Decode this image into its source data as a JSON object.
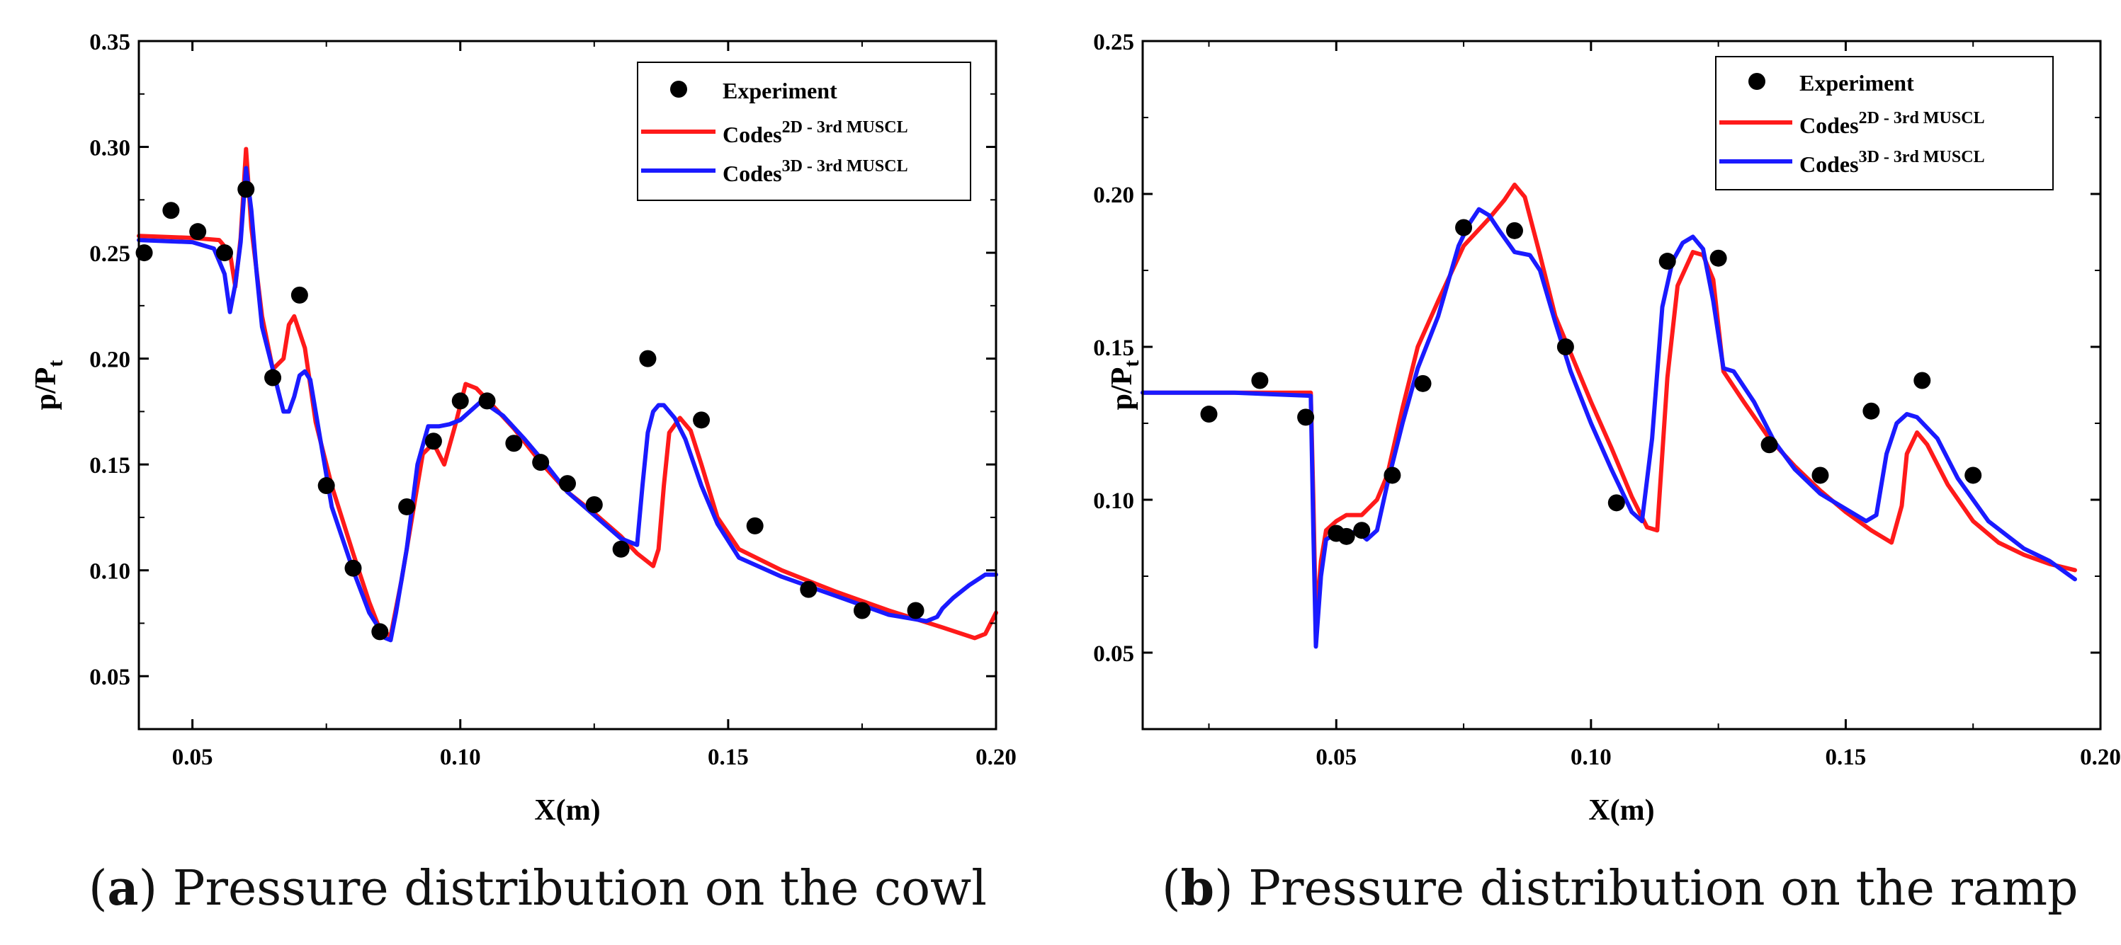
{
  "figure": {
    "captions": [
      {
        "tag": "a",
        "text": "Pressure distribution on the cowl"
      },
      {
        "tag": "b",
        "text": "Pressure distribution on the ramp"
      }
    ]
  },
  "colors": {
    "experiment": "#000000",
    "code2d": "#ff1a1a",
    "code3d": "#1a1aff",
    "axis": "#000000"
  },
  "chart_data": [
    {
      "type": "line",
      "title": "Pressure distribution on the cowl",
      "xlabel": "X(m)",
      "ylabel": "p/P",
      "ylabel_sub": "t",
      "xlim": [
        0.04,
        0.2
      ],
      "ylim": [
        0.025,
        0.35
      ],
      "xticks": [
        "0.05",
        "0.10",
        "0.15",
        "0.20"
      ],
      "xtick_values": [
        0.05,
        0.1,
        0.15,
        0.2
      ],
      "yticks": [
        "0.05",
        "0.10",
        "0.15",
        "0.20",
        "0.25",
        "0.30",
        "0.35"
      ],
      "ytick_values": [
        0.05,
        0.1,
        0.15,
        0.2,
        0.25,
        0.3,
        0.35
      ],
      "legend": {
        "position": "top-right",
        "experiment": "Experiment",
        "code_prefix": "Codes",
        "sup2d": "2D",
        "sup3d": "3D",
        "code_suffix": " - 3rd MUSCL"
      },
      "experiment": {
        "x": [
          0.041,
          0.046,
          0.051,
          0.056,
          0.06,
          0.065,
          0.07,
          0.075,
          0.08,
          0.085,
          0.09,
          0.095,
          0.1,
          0.105,
          0.11,
          0.115,
          0.12,
          0.125,
          0.13,
          0.135,
          0.145,
          0.155,
          0.165,
          0.175,
          0.185
        ],
        "y": [
          0.25,
          0.27,
          0.26,
          0.25,
          0.28,
          0.191,
          0.23,
          0.14,
          0.101,
          0.071,
          0.13,
          0.161,
          0.18,
          0.18,
          0.16,
          0.151,
          0.141,
          0.131,
          0.11,
          0.2,
          0.171,
          0.121,
          0.091,
          0.081,
          0.081
        ]
      },
      "series": [
        {
          "name": "Codes2D - 3rd MUSCL",
          "x": [
            0.04,
            0.05,
            0.055,
            0.057,
            0.058,
            0.059,
            0.06,
            0.061,
            0.063,
            0.065,
            0.067,
            0.068,
            0.069,
            0.071,
            0.073,
            0.076,
            0.08,
            0.083,
            0.085,
            0.087,
            0.089,
            0.091,
            0.093,
            0.095,
            0.097,
            0.099,
            0.101,
            0.103,
            0.106,
            0.11,
            0.115,
            0.12,
            0.125,
            0.13,
            0.133,
            0.135,
            0.136,
            0.137,
            0.138,
            0.139,
            0.141,
            0.143,
            0.145,
            0.148,
            0.152,
            0.16,
            0.17,
            0.18,
            0.19,
            0.196,
            0.198,
            0.2
          ],
          "y": [
            0.258,
            0.257,
            0.256,
            0.25,
            0.234,
            0.257,
            0.299,
            0.262,
            0.22,
            0.195,
            0.2,
            0.216,
            0.22,
            0.205,
            0.17,
            0.14,
            0.108,
            0.085,
            0.072,
            0.069,
            0.095,
            0.125,
            0.155,
            0.16,
            0.15,
            0.168,
            0.188,
            0.186,
            0.178,
            0.167,
            0.151,
            0.137,
            0.127,
            0.116,
            0.108,
            0.104,
            0.102,
            0.11,
            0.14,
            0.165,
            0.172,
            0.166,
            0.15,
            0.125,
            0.11,
            0.1,
            0.09,
            0.081,
            0.073,
            0.068,
            0.07,
            0.08
          ]
        },
        {
          "name": "Codes3D - 3rd MUSCL",
          "x": [
            0.04,
            0.05,
            0.054,
            0.056,
            0.057,
            0.058,
            0.059,
            0.06,
            0.061,
            0.062,
            0.063,
            0.065,
            0.066,
            0.067,
            0.068,
            0.069,
            0.07,
            0.071,
            0.072,
            0.074,
            0.076,
            0.08,
            0.083,
            0.085,
            0.086,
            0.087,
            0.088,
            0.09,
            0.092,
            0.094,
            0.096,
            0.098,
            0.1,
            0.104,
            0.108,
            0.112,
            0.116,
            0.12,
            0.125,
            0.13,
            0.133,
            0.134,
            0.135,
            0.136,
            0.137,
            0.138,
            0.14,
            0.142,
            0.145,
            0.148,
            0.152,
            0.16,
            0.17,
            0.18,
            0.187,
            0.189,
            0.19,
            0.192,
            0.195,
            0.198,
            0.2
          ],
          "y": [
            0.256,
            0.255,
            0.252,
            0.24,
            0.222,
            0.235,
            0.255,
            0.29,
            0.27,
            0.24,
            0.215,
            0.195,
            0.185,
            0.175,
            0.175,
            0.182,
            0.192,
            0.194,
            0.19,
            0.16,
            0.13,
            0.1,
            0.08,
            0.072,
            0.068,
            0.067,
            0.08,
            0.11,
            0.15,
            0.168,
            0.168,
            0.169,
            0.171,
            0.18,
            0.173,
            0.162,
            0.15,
            0.137,
            0.126,
            0.115,
            0.112,
            0.14,
            0.165,
            0.175,
            0.178,
            0.178,
            0.172,
            0.162,
            0.14,
            0.122,
            0.106,
            0.097,
            0.088,
            0.079,
            0.076,
            0.078,
            0.082,
            0.087,
            0.093,
            0.098,
            0.098
          ]
        }
      ]
    },
    {
      "type": "line",
      "title": "Pressure distribution on the ramp",
      "xlabel": "X(m)",
      "ylabel": "p/P",
      "ylabel_sub": "t",
      "xlim": [
        0.012,
        0.2
      ],
      "ylim": [
        0.025,
        0.25
      ],
      "xticks": [
        "0.05",
        "0.10",
        "0.15",
        "0.20"
      ],
      "xtick_values": [
        0.05,
        0.1,
        0.15,
        0.2
      ],
      "yticks": [
        "0.05",
        "0.10",
        "0.15",
        "0.20",
        "0.25"
      ],
      "ytick_values": [
        0.05,
        0.1,
        0.15,
        0.2,
        0.25
      ],
      "legend": {
        "position": "top-right",
        "experiment": "Experiment",
        "code_prefix": "Codes",
        "sup2d": "2D",
        "sup3d": "3D",
        "code_suffix": " - 3rd MUSCL"
      },
      "experiment": {
        "x": [
          0.025,
          0.035,
          0.044,
          0.05,
          0.052,
          0.055,
          0.061,
          0.067,
          0.075,
          0.085,
          0.095,
          0.105,
          0.115,
          0.125,
          0.135,
          0.145,
          0.155,
          0.165,
          0.175
        ],
        "y": [
          0.128,
          0.139,
          0.127,
          0.089,
          0.088,
          0.09,
          0.108,
          0.138,
          0.189,
          0.188,
          0.15,
          0.099,
          0.178,
          0.179,
          0.118,
          0.108,
          0.129,
          0.139,
          0.108
        ],
        "note": "scatter"
      },
      "series": [
        {
          "name": "Codes2D - 3rd MUSCL",
          "x": [
            0.012,
            0.03,
            0.045,
            0.0455,
            0.046,
            0.047,
            0.048,
            0.05,
            0.052,
            0.055,
            0.058,
            0.06,
            0.063,
            0.066,
            0.07,
            0.075,
            0.08,
            0.083,
            0.085,
            0.087,
            0.09,
            0.093,
            0.096,
            0.1,
            0.104,
            0.108,
            0.111,
            0.113,
            0.115,
            0.117,
            0.12,
            0.122,
            0.124,
            0.126,
            0.13,
            0.135,
            0.14,
            0.145,
            0.15,
            0.155,
            0.159,
            0.161,
            0.162,
            0.164,
            0.166,
            0.17,
            0.175,
            0.18,
            0.185,
            0.19,
            0.195
          ],
          "y": [
            0.135,
            0.135,
            0.135,
            0.1,
            0.06,
            0.08,
            0.09,
            0.093,
            0.095,
            0.095,
            0.1,
            0.108,
            0.13,
            0.15,
            0.165,
            0.183,
            0.192,
            0.198,
            0.203,
            0.199,
            0.18,
            0.16,
            0.148,
            0.132,
            0.117,
            0.101,
            0.091,
            0.09,
            0.14,
            0.17,
            0.181,
            0.18,
            0.172,
            0.142,
            0.132,
            0.12,
            0.111,
            0.103,
            0.096,
            0.09,
            0.086,
            0.098,
            0.115,
            0.122,
            0.118,
            0.105,
            0.093,
            0.086,
            0.082,
            0.079,
            0.077
          ]
        },
        {
          "name": "Codes3D - 3rd MUSCL",
          "x": [
            0.012,
            0.03,
            0.045,
            0.0455,
            0.046,
            0.047,
            0.048,
            0.05,
            0.052,
            0.054,
            0.056,
            0.058,
            0.06,
            0.063,
            0.066,
            0.07,
            0.074,
            0.076,
            0.078,
            0.08,
            0.082,
            0.085,
            0.088,
            0.09,
            0.093,
            0.096,
            0.1,
            0.104,
            0.108,
            0.11,
            0.112,
            0.114,
            0.116,
            0.118,
            0.12,
            0.122,
            0.124,
            0.126,
            0.128,
            0.132,
            0.136,
            0.14,
            0.145,
            0.15,
            0.154,
            0.156,
            0.158,
            0.16,
            0.162,
            0.164,
            0.168,
            0.172,
            0.178,
            0.185,
            0.19,
            0.195
          ],
          "y": [
            0.135,
            0.135,
            0.134,
            0.09,
            0.052,
            0.075,
            0.087,
            0.089,
            0.088,
            0.09,
            0.087,
            0.09,
            0.105,
            0.125,
            0.143,
            0.16,
            0.183,
            0.19,
            0.195,
            0.193,
            0.188,
            0.181,
            0.18,
            0.175,
            0.158,
            0.142,
            0.125,
            0.11,
            0.096,
            0.093,
            0.12,
            0.163,
            0.178,
            0.184,
            0.186,
            0.182,
            0.165,
            0.143,
            0.142,
            0.132,
            0.119,
            0.11,
            0.102,
            0.097,
            0.093,
            0.095,
            0.115,
            0.125,
            0.128,
            0.127,
            0.12,
            0.107,
            0.093,
            0.084,
            0.08,
            0.074
          ]
        }
      ]
    }
  ]
}
